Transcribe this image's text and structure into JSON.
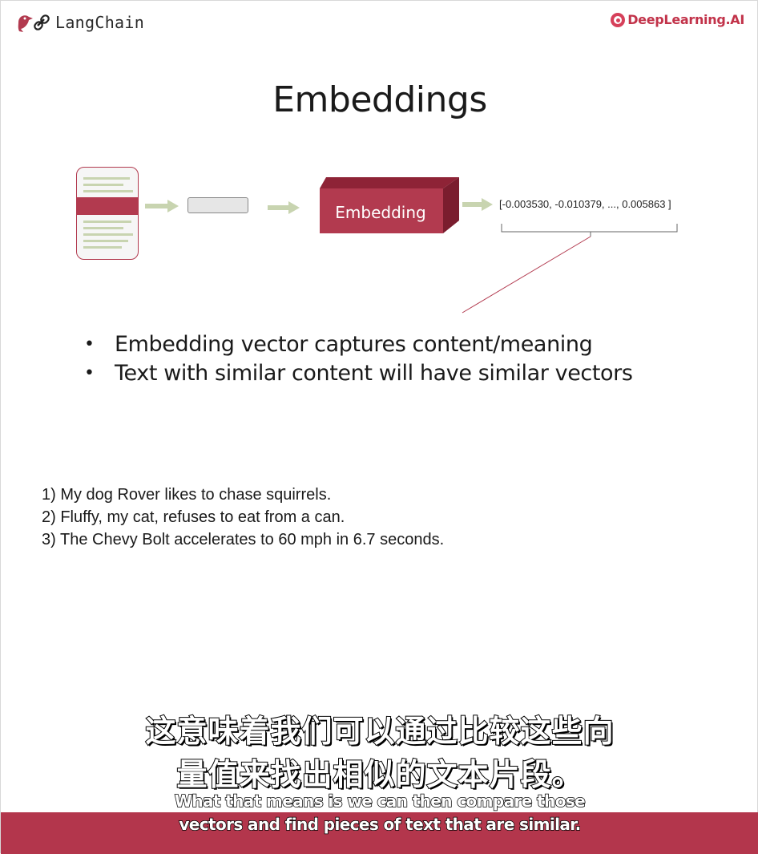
{
  "header": {
    "langchain_text": "LangChain",
    "deeplearning_text": "DeepLearning.AI"
  },
  "slide": {
    "title": "Embeddings",
    "embedding_label": "Embedding",
    "vector_text": "[-0.003530, -0.010379, ..., 0.005863 ]",
    "bullets": [
      "Embedding vector captures content/meaning",
      "Text with similar content will have similar vectors"
    ],
    "examples": [
      "1) My dog Rover likes to chase squirrels.",
      "2) Fluffy, my cat, refuses to eat from a can.",
      "3) The Chevy Bolt accelerates to 60 mph in 6.7 seconds."
    ]
  },
  "subtitles": {
    "chinese": [
      "这意味着我们可以通过比较这些向",
      "量值来找出相似的文本片段。"
    ],
    "english": [
      "What that means is we can then compare those",
      "vectors and find pieces of text that are similar."
    ]
  },
  "colors": {
    "accent": "#b23a4f",
    "arrow": "#c8d4b0"
  }
}
